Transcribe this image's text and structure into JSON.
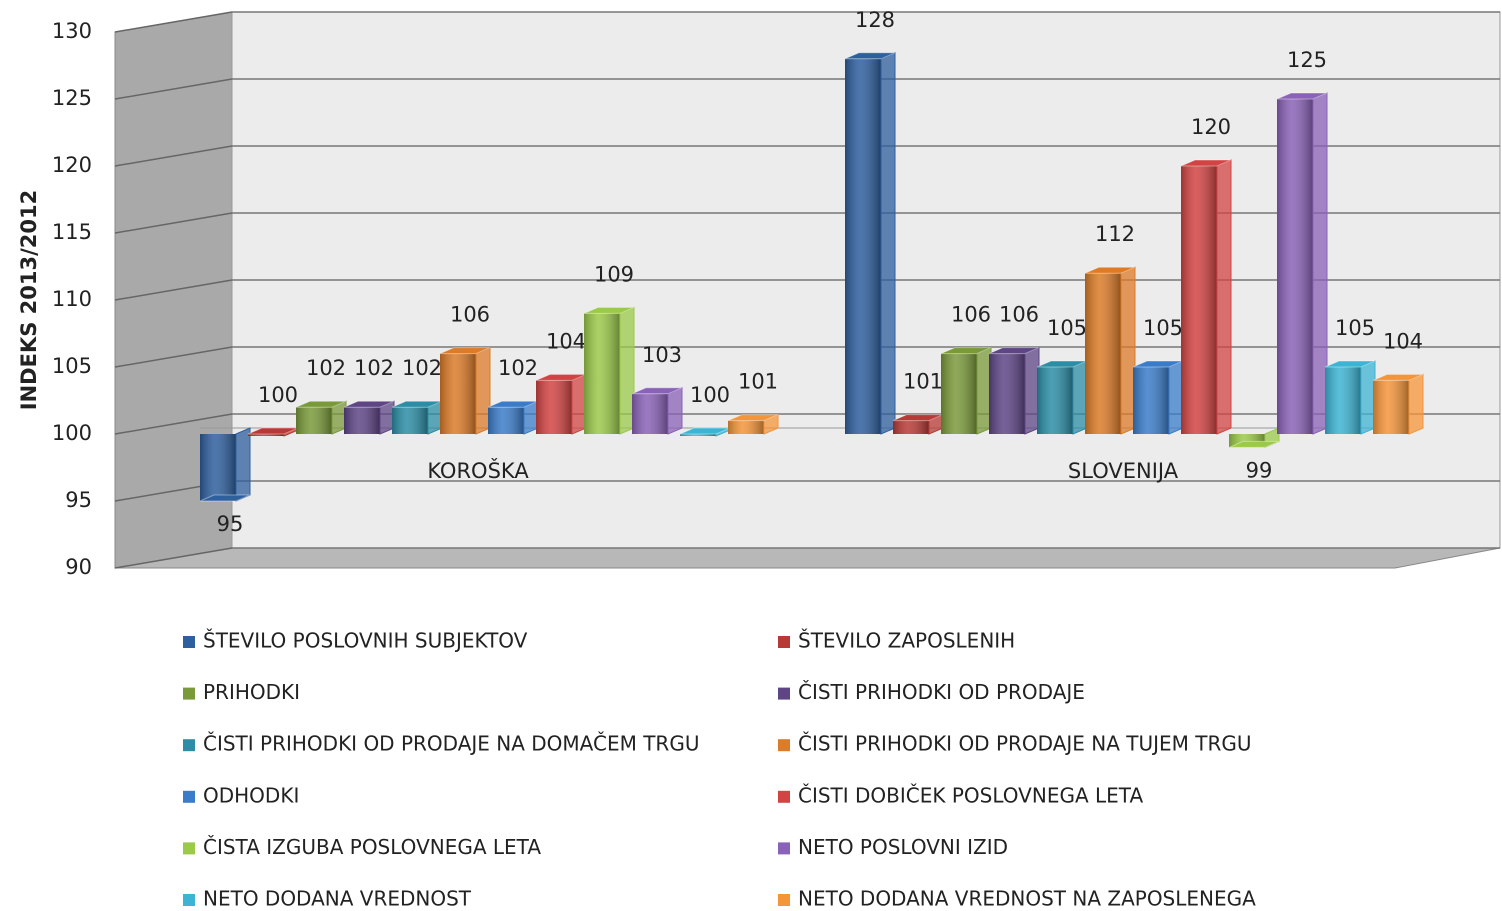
{
  "chart_data": {
    "type": "bar3d",
    "y_label": "INDEKS 2013/2012",
    "categories": [
      "KOROŠKA",
      "SLOVENIJA"
    ],
    "ylim": [
      90,
      130
    ],
    "yticks": [
      90,
      95,
      100,
      105,
      110,
      115,
      120,
      125,
      130
    ],
    "grid": true,
    "baseline": 100,
    "legend": "bottom",
    "series": [
      {
        "name": "ŠTEVILO POSLOVNIH SUBJEKTOV",
        "color": "#2e5f9e",
        "values": [
          95,
          128
        ]
      },
      {
        "name": "ŠTEVILO ZAPOSLENIH",
        "color": "#b83a36",
        "values": [
          100,
          101
        ]
      },
      {
        "name": "PRIHODKI",
        "color": "#7a9a3a",
        "values": [
          102,
          106
        ]
      },
      {
        "name": "ČISTI PRIHODKI OD PRODAJE",
        "color": "#5e4586",
        "values": [
          102,
          106
        ]
      },
      {
        "name": "ČISTI PRIHODKI OD PRODAJE NA DOMAČEM TRGU",
        "color": "#2b8da6",
        "values": [
          102,
          105
        ]
      },
      {
        "name": "ČISTI PRIHODKI OD PRODAJE NA TUJEM TRGU",
        "color": "#dc7b28",
        "values": [
          106,
          112
        ]
      },
      {
        "name": "ODHODKI",
        "color": "#3a7cc9",
        "values": [
          102,
          105
        ]
      },
      {
        "name": "ČISTI DOBIČEK POSLOVNEGA LETA",
        "color": "#d24443",
        "values": [
          104,
          120
        ]
      },
      {
        "name": "ČISTA IZGUBA POSLOVNEGA LETA",
        "color": "#9bc94a",
        "values": [
          109,
          99
        ]
      },
      {
        "name": "NETO POSLOVNI IZID",
        "color": "#8a62b8",
        "values": [
          103,
          125
        ]
      },
      {
        "name": "NETO DODANA VREDNOST",
        "color": "#3db4d4",
        "values": [
          100,
          105
        ]
      },
      {
        "name": "NETO DODANA VREDNOST NA ZAPOSLENEGA",
        "color": "#f5953a",
        "values": [
          101,
          104
        ]
      }
    ]
  }
}
